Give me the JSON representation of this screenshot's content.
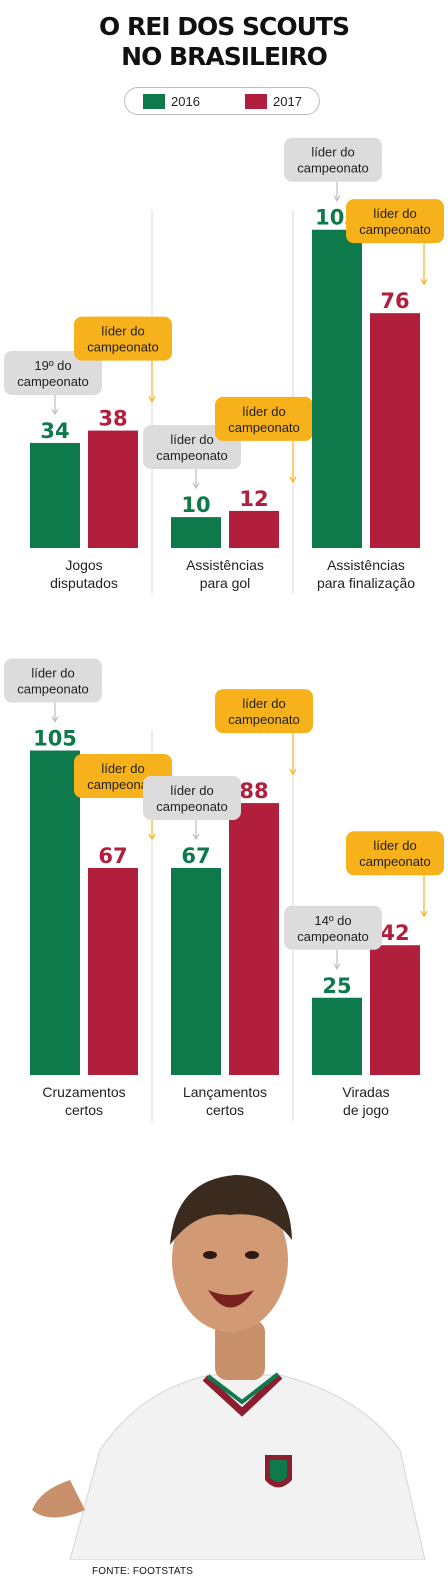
{
  "title_line1": "O REI DOS SCOUTS",
  "title_line2": "NO BRASILEIRO",
  "legend": [
    {
      "label": "2016",
      "color": "#0e7a4b"
    },
    {
      "label": "2017",
      "color": "#b21f3d"
    }
  ],
  "source": "FONTE: FOOTSTATS",
  "photo_icon": "fluminense-player-photo",
  "colors": {
    "green": "#0e7a4b",
    "red": "#b21f3d",
    "callout_gray": "#dcdcdc",
    "callout_gold": "#f7b21b"
  },
  "chart_data": {
    "type": "bar",
    "series": [
      {
        "name": "2016",
        "values": [
          34,
          10,
          103,
          105,
          67,
          25
        ]
      },
      {
        "name": "2017",
        "values": [
          38,
          12,
          76,
          67,
          88,
          42
        ]
      }
    ],
    "panels": [
      {
        "categories": [
          [
            "Jogos",
            "disputados"
          ],
          [
            "Assistências",
            "para gol"
          ],
          [
            "Assistências",
            "para finalização"
          ]
        ],
        "v2016": [
          34,
          10,
          103
        ],
        "v2017": [
          38,
          12,
          76
        ],
        "note2016": [
          [
            "19º do",
            "campeonato"
          ],
          [
            "líder do",
            "campeonato"
          ],
          [
            "líder do",
            "campeonato"
          ]
        ],
        "note2017": [
          [
            "líder do",
            "campeonato"
          ],
          [
            "líder do",
            "campeonato"
          ],
          [
            "líder do",
            "campeonato"
          ]
        ]
      },
      {
        "categories": [
          [
            "Cruzamentos",
            "certos"
          ],
          [
            "Lançamentos",
            "certos"
          ],
          [
            "Viradas",
            "de jogo"
          ]
        ],
        "v2016": [
          105,
          67,
          25
        ],
        "v2017": [
          67,
          88,
          42
        ],
        "note2016": [
          [
            "líder do",
            "campeonato"
          ],
          [
            "líder do",
            "campeonato"
          ],
          [
            "14º do",
            "campeonato"
          ]
        ],
        "note2017": [
          [
            "líder do",
            "campeonato"
          ],
          [
            "líder do",
            "campeonato"
          ],
          [
            "líder do",
            "campeonato"
          ]
        ]
      }
    ],
    "grid": false,
    "legend_position": "top-center"
  }
}
